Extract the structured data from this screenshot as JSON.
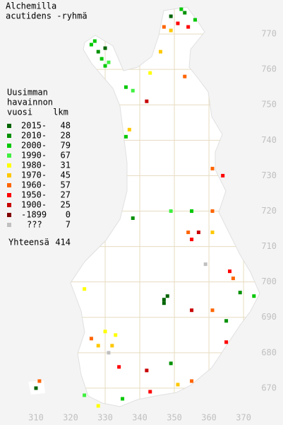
{
  "title": [
    "Alchemilla",
    "acutidens -ryhmä"
  ],
  "legend": {
    "heading": [
      "Uusimman",
      "havainnon",
      "vuosi"
    ],
    "count_header": "lkm",
    "periods": [
      {
        "label": "2015-",
        "count": 48,
        "color": "#006400"
      },
      {
        "label": "2010-",
        "count": 28,
        "color": "#009000"
      },
      {
        "label": "2000-",
        "count": 79,
        "color": "#00c800"
      },
      {
        "label": "1990-",
        "count": 67,
        "color": "#40f040"
      },
      {
        "label": "1980-",
        "count": 31,
        "color": "#ffff00"
      },
      {
        "label": "1970-",
        "count": 45,
        "color": "#ffc800"
      },
      {
        "label": "1960-",
        "count": 57,
        "color": "#ff6400"
      },
      {
        "label": "1950-",
        "count": 27,
        "color": "#ff0000"
      },
      {
        "label": "1900-",
        "count": 25,
        "color": "#c80000"
      },
      {
        "label": "-1899",
        "count": 0,
        "color": "#800000"
      },
      {
        "label": "???",
        "count": 7,
        "color": "#c0c0c0"
      }
    ],
    "total_label": "Yhteensä",
    "total": 414
  },
  "axes": {
    "xlim": [
      299.6,
      381.4
    ],
    "ylim": [
      659.6,
      779.6
    ],
    "xticks": [
      310,
      320,
      330,
      340,
      350,
      360,
      370
    ],
    "yticks": [
      770,
      760,
      750,
      740,
      730,
      720,
      710,
      700,
      690,
      680,
      670
    ]
  },
  "observations": [
    [
      326,
      767,
      2
    ],
    [
      328,
      765,
      1
    ],
    [
      329,
      763,
      2
    ],
    [
      330,
      766,
      0
    ],
    [
      327,
      768,
      2
    ],
    [
      331,
      762,
      3
    ],
    [
      330,
      761,
      2
    ],
    [
      349,
      775,
      0
    ],
    [
      351,
      773,
      7
    ],
    [
      353,
      776,
      1
    ],
    [
      354,
      772,
      7
    ],
    [
      349,
      771,
      5
    ],
    [
      356,
      774,
      2
    ],
    [
      347,
      772,
      6
    ],
    [
      352,
      777,
      2
    ],
    [
      336,
      755,
      2
    ],
    [
      338,
      754,
      3
    ],
    [
      343,
      759,
      4
    ],
    [
      346,
      765,
      5
    ],
    [
      353,
      758,
      6
    ],
    [
      342,
      751,
      8
    ],
    [
      337,
      743,
      5
    ],
    [
      336,
      741,
      2
    ],
    [
      361,
      732,
      6
    ],
    [
      364,
      730,
      7
    ],
    [
      338,
      718,
      1
    ],
    [
      349,
      720,
      3
    ],
    [
      355,
      720,
      2
    ],
    [
      361,
      720,
      6
    ],
    [
      354,
      714,
      6
    ],
    [
      355,
      712,
      7
    ],
    [
      357,
      714,
      8
    ],
    [
      361,
      714,
      5
    ],
    [
      359,
      705,
      10
    ],
    [
      366,
      703,
      7
    ],
    [
      367,
      701,
      6
    ],
    [
      369,
      697,
      1
    ],
    [
      373,
      696,
      2
    ],
    [
      347,
      695,
      0
    ],
    [
      348,
      696,
      0
    ],
    [
      347,
      694,
      0
    ],
    [
      361,
      692,
      6
    ],
    [
      365,
      683,
      7
    ],
    [
      326,
      684,
      6
    ],
    [
      328,
      682,
      5
    ],
    [
      330,
      686,
      4
    ],
    [
      333,
      685,
      4
    ],
    [
      332,
      682,
      5
    ],
    [
      331,
      680,
      10
    ],
    [
      334,
      676,
      7
    ],
    [
      342,
      675,
      8
    ],
    [
      349,
      677,
      1
    ],
    [
      351,
      671,
      5
    ],
    [
      355,
      672,
      6
    ],
    [
      310,
      670,
      0
    ],
    [
      311,
      672,
      6
    ],
    [
      324,
      668,
      3
    ],
    [
      335,
      667,
      2
    ],
    [
      343,
      669,
      7
    ],
    [
      328,
      665,
      4
    ],
    [
      324,
      698,
      4
    ],
    [
      365,
      689,
      1
    ],
    [
      355,
      692,
      8
    ]
  ]
}
